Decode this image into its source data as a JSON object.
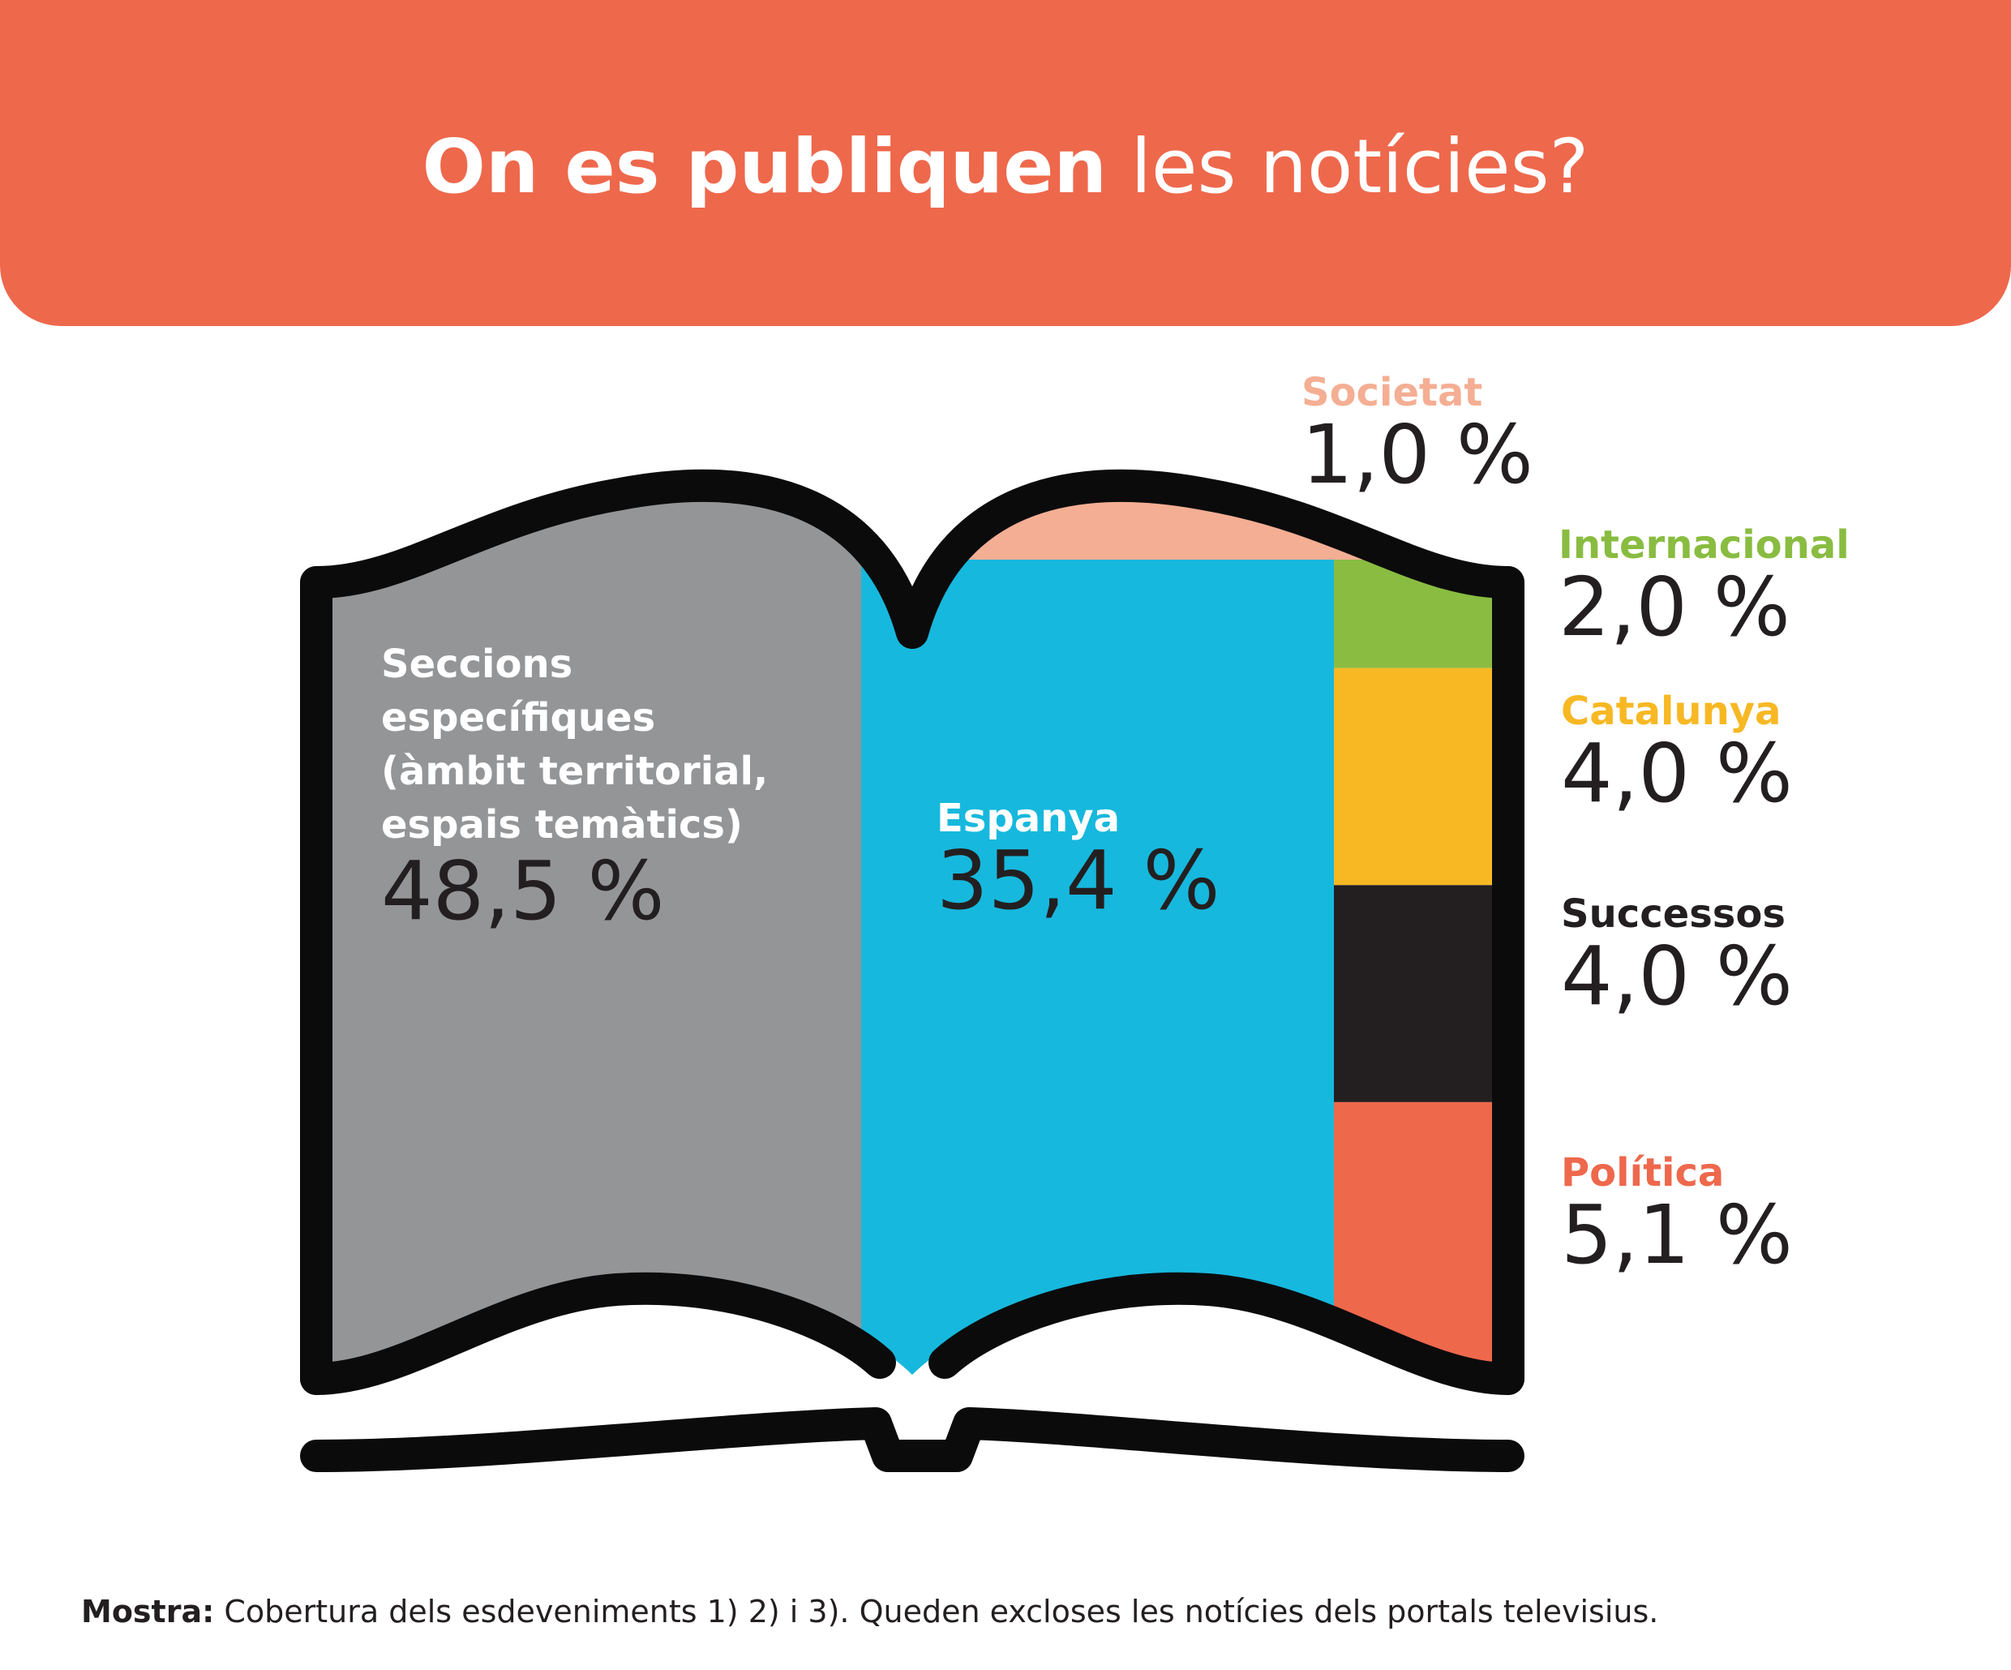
{
  "title": {
    "bold": "On es publiquen",
    "light": "les notícies?"
  },
  "colors": {
    "banner": "#EE684C",
    "outline": "#0B0B0C",
    "seccions": "#949597",
    "espanya": "#17B8DD",
    "societat": "#F4AE93",
    "internacional": "#89BC41",
    "catalunya": "#F7B824",
    "successos": "#231F20",
    "politica": "#EE684C"
  },
  "chart_data": {
    "type": "treemap",
    "unit": "%",
    "categories": [
      {
        "key": "seccions",
        "label": "Seccions específiques (àmbit territorial, espais temàtics)",
        "label_lines": [
          "Seccions",
          "específiques",
          "(àmbit territorial,",
          "espais temàtics)"
        ],
        "value": 48.5,
        "value_text": "48,5 %"
      },
      {
        "key": "espanya",
        "label": "Espanya",
        "label_lines": [
          "Espanya"
        ],
        "value": 35.4,
        "value_text": "35,4 %"
      },
      {
        "key": "societat",
        "label": "Societat",
        "label_lines": [
          "Societat"
        ],
        "value": 1.0,
        "value_text": "1,0 %"
      },
      {
        "key": "internacional",
        "label": "Internacional",
        "label_lines": [
          "Internacional"
        ],
        "value": 2.0,
        "value_text": "2,0 %"
      },
      {
        "key": "catalunya",
        "label": "Catalunya",
        "label_lines": [
          "Catalunya"
        ],
        "value": 4.0,
        "value_text": "4,0 %"
      },
      {
        "key": "successos",
        "label": "Successos",
        "label_lines": [
          "Successos"
        ],
        "value": 4.0,
        "value_text": "4,0 %"
      },
      {
        "key": "politica",
        "label": "Política",
        "label_lines": [
          "Política"
        ],
        "value": 5.1,
        "value_text": "5,1 %"
      }
    ]
  },
  "footnote": {
    "bold": "Mostra:",
    "text": " Cobertura dels esdeveniments 1) 2) i 3). Queden excloses les notícies dels portals televisius."
  }
}
